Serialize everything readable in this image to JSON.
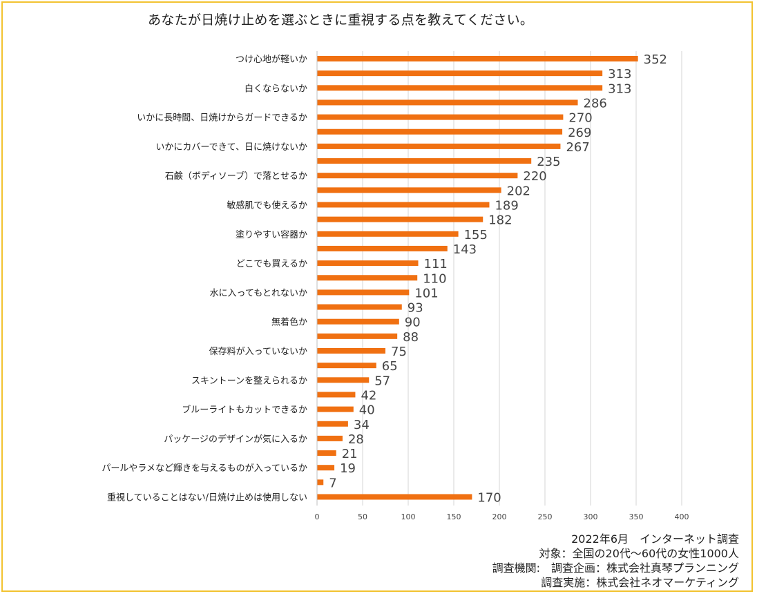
{
  "chart_data": {
    "type": "bar",
    "orientation": "horizontal",
    "title": "あなたが日焼け止めを選ぶときに重視する点を教えてください。",
    "xlabel": "",
    "ylabel": "",
    "xlim": [
      0,
      400
    ],
    "x_ticks": [
      0,
      50,
      100,
      150,
      200,
      250,
      300,
      350,
      400
    ],
    "grid": true,
    "bar_color": "#f07011",
    "categories": [
      "つけ心地が軽いか",
      "",
      "白くならないか",
      "",
      "いかに長時間、日焼けからガードできるか",
      "",
      "いかにカバーできて、日に焼けないか",
      "",
      "石鹸（ボディソープ）で落とせるか",
      "",
      "敏感肌でも使えるか",
      "",
      "塗りやすい容器か",
      "",
      "どこでも買えるか",
      "",
      "水に入ってもとれないか",
      "",
      "無着色か",
      "",
      "保存料が入っていないか",
      "",
      "スキントーンを整えられるか",
      "",
      "ブルーライトもカットできるか",
      "",
      "パッケージのデザインが気に入るか",
      "",
      "パールやラメなど輝きを与えるものが入っているか",
      "",
      "重視していることはない/日焼け止めは使用しない"
    ],
    "values": [
      352,
      313,
      313,
      286,
      270,
      269,
      267,
      235,
      220,
      202,
      189,
      182,
      155,
      143,
      111,
      110,
      101,
      93,
      90,
      88,
      75,
      65,
      57,
      42,
      40,
      34,
      28,
      21,
      19,
      7,
      170
    ]
  },
  "footer": {
    "line1": "2022年6月　インターネット調査",
    "line2": "対象：全国の20代～60代の女性1000人",
    "line3": "調査機関:　調査企画：株式会社真琴プランニング",
    "line4": "調査実施：株式会社ネオマーケティング"
  }
}
